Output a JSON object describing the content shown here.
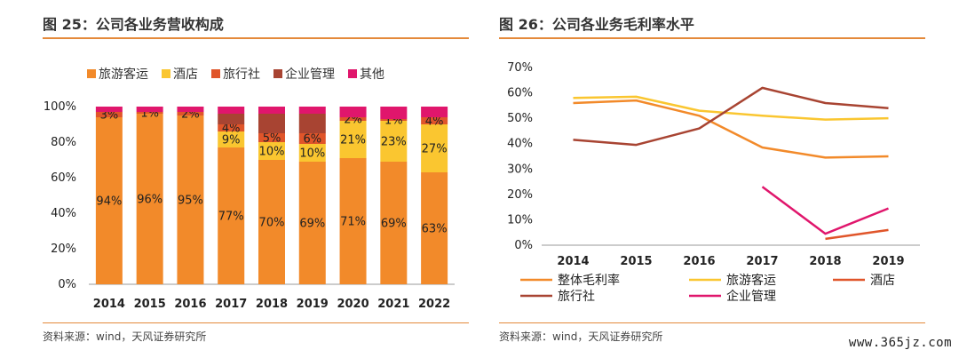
{
  "left_panel": {
    "title": "图 25：公司各业务营收构成",
    "source": "资料来源：wind，天风证券研究所"
  },
  "right_panel": {
    "title": "图 26：公司各业务毛利率水平",
    "source": "资料来源：wind，天风证券研究所"
  },
  "watermark": "www.365jz.com",
  "colors": {
    "travel": "#f28a2a",
    "hotel": "#fac630",
    "agency": "#e0552a",
    "enterprise": "#a84432",
    "other": "#e0166c",
    "total_margin": "#f28a2a",
    "rule": "#e4893a"
  },
  "chart_data": [
    {
      "type": "bar",
      "stacked": true,
      "categories": [
        "2014",
        "2015",
        "2016",
        "2017",
        "2018",
        "2019",
        "2020",
        "2021",
        "2022"
      ],
      "ylim": [
        0,
        100
      ],
      "yticks": [
        "0%",
        "20%",
        "40%",
        "60%",
        "80%",
        "100%"
      ],
      "legend_position": "top",
      "series": [
        {
          "name": "旅游客运",
          "color": "#f28a2a",
          "values": [
            94,
            96,
            95,
            77,
            70,
            69,
            71,
            69,
            63
          ],
          "labels": [
            "94%",
            "96%",
            "95%",
            "77%",
            "70%",
            "69%",
            "71%",
            "69%",
            "63%"
          ]
        },
        {
          "name": "酒店",
          "color": "#fac630",
          "values": [
            0,
            0,
            0,
            9,
            10,
            10,
            21,
            23,
            27
          ],
          "labels": [
            "",
            "",
            "",
            "9%",
            "10%",
            "10%",
            "21%",
            "23%",
            "27%"
          ]
        },
        {
          "name": "旅行社",
          "color": "#e0552a",
          "values": [
            3,
            1,
            2,
            4,
            5,
            6,
            2,
            1,
            4
          ],
          "labels": [
            "3%",
            "1%",
            "2%",
            "4%",
            "5%",
            "6%",
            "2%",
            "1%",
            "4%"
          ]
        },
        {
          "name": "企业管理",
          "color": "#a84432",
          "values": [
            0,
            0,
            0,
            6,
            11,
            11,
            0,
            0,
            0
          ],
          "labels": [
            "",
            "",
            "",
            "",
            "",
            "",
            "",
            "",
            ""
          ]
        },
        {
          "name": "其他",
          "color": "#e0166c",
          "values": [
            3,
            3,
            3,
            4,
            4,
            4,
            6,
            7,
            6
          ],
          "labels": [
            "",
            "",
            "",
            "",
            "",
            "",
            "",
            "",
            ""
          ]
        }
      ]
    },
    {
      "type": "line",
      "x": [
        "2014",
        "2015",
        "2016",
        "2017",
        "2018",
        "2019"
      ],
      "ylim": [
        0,
        70
      ],
      "yticks": [
        "0%",
        "10%",
        "20%",
        "30%",
        "40%",
        "50%",
        "60%",
        "70%"
      ],
      "legend_position": "bottom",
      "series": [
        {
          "name": "整体毛利率",
          "color": "#f28a2a",
          "values": [
            56,
            57,
            51,
            38.5,
            34.5,
            35
          ]
        },
        {
          "name": "旅游客运",
          "color": "#fac630",
          "values": [
            58,
            58.5,
            53,
            51,
            49.5,
            50
          ]
        },
        {
          "name": "酒店",
          "color": "#e0552a",
          "values": [
            null,
            null,
            null,
            null,
            2.5,
            6
          ]
        },
        {
          "name": "旅行社",
          "color": "#a84432",
          "values": [
            41.5,
            39.5,
            46,
            62,
            56,
            54
          ]
        },
        {
          "name": "企业管理",
          "color": "#e0166c",
          "values": [
            null,
            null,
            null,
            23,
            4.5,
            14.5
          ]
        }
      ]
    }
  ]
}
